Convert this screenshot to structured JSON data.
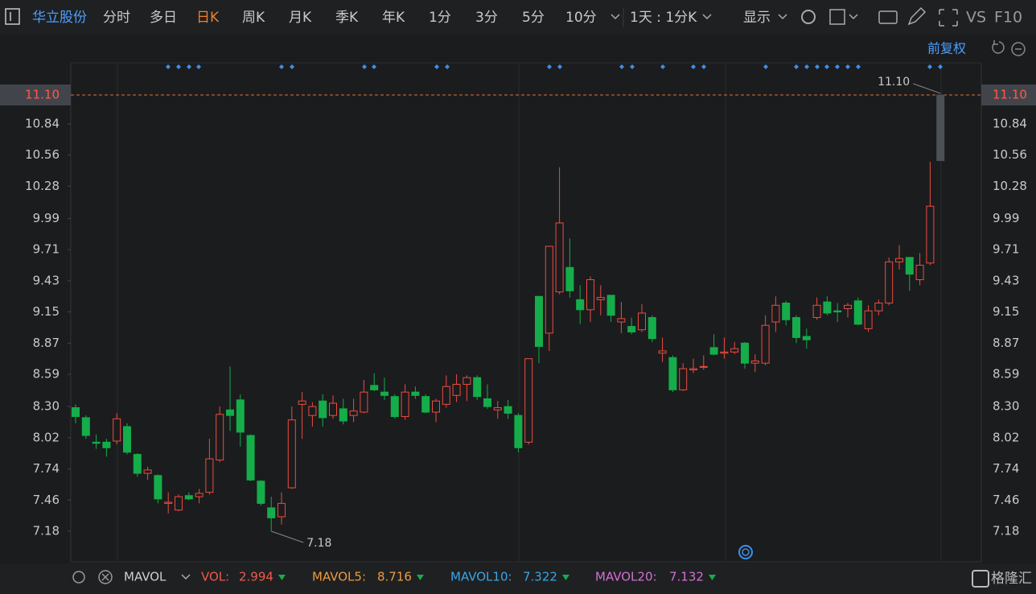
{
  "toolbar": {
    "stock": "华立股份",
    "tabs": [
      "分时",
      "多日",
      "日K",
      "周K",
      "月K",
      "季K",
      "年K",
      "1分",
      "3分",
      "5分",
      "10分"
    ],
    "active_tab": 2,
    "period": "1天 : 1分K",
    "display": "显示",
    "vs": "VS",
    "f10": "F10"
  },
  "adjust": "前复权",
  "chart_data": {
    "type": "candlestick",
    "ylim": [
      6.905,
      11.389
    ],
    "yticks": [
      10.84,
      10.56,
      10.28,
      9.99,
      9.71,
      9.43,
      9.15,
      8.87,
      8.59,
      {
        "value": 8.3,
        "label": "8.30"
      },
      8.02,
      7.74,
      7.46,
      7.18
    ],
    "last_price": {
      "value": 11.1,
      "label": "11.10"
    },
    "high_label": {
      "value": 11.1,
      "label": "11.10"
    },
    "low_label": 7.18,
    "up_color": "#ee4b3e",
    "down_color": "#14ad4a",
    "current_color": "#4b5057",
    "candles": [
      [
        8.29,
        8.32,
        8.15,
        8.21
      ],
      [
        8.2,
        8.22,
        8.01,
        8.04
      ],
      [
        7.98,
        8.05,
        7.92,
        7.97
      ],
      [
        7.98,
        8.01,
        7.85,
        7.93
      ],
      [
        7.99,
        8.24,
        7.96,
        8.19
      ],
      [
        8.12,
        8.15,
        7.87,
        7.89
      ],
      [
        7.87,
        7.88,
        7.67,
        7.7
      ],
      [
        7.7,
        7.76,
        7.64,
        7.73
      ],
      [
        7.68,
        7.69,
        7.43,
        7.47
      ],
      [
        7.43,
        7.53,
        7.34,
        7.44
      ],
      [
        7.37,
        7.51,
        7.36,
        7.49
      ],
      [
        7.5,
        7.53,
        7.46,
        7.47
      ],
      [
        7.49,
        7.56,
        7.43,
        7.52
      ],
      [
        7.53,
        8.01,
        7.51,
        7.83
      ],
      [
        7.82,
        8.3,
        7.8,
        8.23
      ],
      [
        8.27,
        8.66,
        8.08,
        8.22
      ],
      [
        8.36,
        8.41,
        7.94,
        8.07
      ],
      [
        8.04,
        8.05,
        7.63,
        7.64
      ],
      [
        7.63,
        7.64,
        7.41,
        7.43
      ],
      [
        7.39,
        7.49,
        7.18,
        7.3
      ],
      [
        7.31,
        7.53,
        7.24,
        7.43
      ],
      [
        7.57,
        8.3,
        7.56,
        8.18
      ],
      [
        8.32,
        8.43,
        8.01,
        8.35
      ],
      [
        8.22,
        8.34,
        8.12,
        8.3
      ],
      [
        8.35,
        8.41,
        8.12,
        8.2
      ],
      [
        8.22,
        8.4,
        8.19,
        8.33
      ],
      [
        8.28,
        8.37,
        8.14,
        8.17
      ],
      [
        8.22,
        8.37,
        8.16,
        8.26
      ],
      [
        8.25,
        8.54,
        8.24,
        8.43
      ],
      [
        8.49,
        8.6,
        8.44,
        8.45
      ],
      [
        8.43,
        8.56,
        8.36,
        8.4
      ],
      [
        8.39,
        8.41,
        8.19,
        8.21
      ],
      [
        8.21,
        8.5,
        8.18,
        8.43
      ],
      [
        8.43,
        8.48,
        8.37,
        8.4
      ],
      [
        8.39,
        8.41,
        8.24,
        8.25
      ],
      [
        8.25,
        8.37,
        8.16,
        8.35
      ],
      [
        8.32,
        8.58,
        8.29,
        8.48
      ],
      [
        8.4,
        8.59,
        8.34,
        8.5
      ],
      [
        8.5,
        8.58,
        8.35,
        8.56
      ],
      [
        8.56,
        8.58,
        8.36,
        8.39
      ],
      [
        8.37,
        8.5,
        8.28,
        8.3
      ],
      [
        8.27,
        8.35,
        8.19,
        8.29
      ],
      [
        8.3,
        8.36,
        8.19,
        8.24
      ],
      [
        8.22,
        8.24,
        7.89,
        7.93
      ],
      [
        7.98,
        8.73,
        7.96,
        8.73
      ],
      [
        9.29,
        9.29,
        8.69,
        8.84
      ],
      [
        8.96,
        9.74,
        8.8,
        9.74
      ],
      [
        9.33,
        10.45,
        9.31,
        9.95
      ],
      [
        9.55,
        9.81,
        9.28,
        9.34
      ],
      [
        9.26,
        9.39,
        9.04,
        9.17
      ],
      [
        9.17,
        9.47,
        9.06,
        9.44
      ],
      [
        9.26,
        9.39,
        9.12,
        9.28
      ],
      [
        9.3,
        9.3,
        9.06,
        9.12
      ],
      [
        9.06,
        9.24,
        8.96,
        9.09
      ],
      [
        9.02,
        9.1,
        8.95,
        8.97
      ],
      [
        8.99,
        9.22,
        8.97,
        9.14
      ],
      [
        9.1,
        9.12,
        8.88,
        8.91
      ],
      [
        8.78,
        8.92,
        8.7,
        8.8
      ],
      [
        8.74,
        8.76,
        8.43,
        8.45
      ],
      [
        8.45,
        8.69,
        8.44,
        8.64
      ],
      [
        8.63,
        8.73,
        8.6,
        8.64
      ],
      [
        8.66,
        8.76,
        8.63,
        8.66
      ],
      [
        8.83,
        8.95,
        8.76,
        8.77
      ],
      [
        8.78,
        8.92,
        8.73,
        8.79
      ],
      [
        8.79,
        8.88,
        8.77,
        8.82
      ],
      [
        8.87,
        8.88,
        8.64,
        8.69
      ],
      [
        8.69,
        8.77,
        8.61,
        8.71
      ],
      [
        8.69,
        9.12,
        8.67,
        9.03
      ],
      [
        9.06,
        9.29,
        8.97,
        9.21
      ],
      [
        9.23,
        9.25,
        9.03,
        9.08
      ],
      [
        9.1,
        9.12,
        8.87,
        8.92
      ],
      [
        8.93,
        9.0,
        8.82,
        8.9
      ],
      [
        9.1,
        9.28,
        9.08,
        9.21
      ],
      [
        9.24,
        9.29,
        9.12,
        9.14
      ],
      [
        9.16,
        9.23,
        9.06,
        9.15
      ],
      [
        9.18,
        9.23,
        9.1,
        9.21
      ],
      [
        9.25,
        9.28,
        9.03,
        9.04
      ],
      [
        9.0,
        9.21,
        8.97,
        9.16
      ],
      [
        9.16,
        9.26,
        9.12,
        9.23
      ],
      [
        9.23,
        9.64,
        9.21,
        9.6
      ],
      [
        9.6,
        9.75,
        9.53,
        9.63
      ],
      [
        9.64,
        9.64,
        9.34,
        9.49
      ],
      [
        9.44,
        9.68,
        9.39,
        9.57
      ],
      [
        9.59,
        10.5,
        9.57,
        10.1
      ],
      [
        10.51,
        11.1,
        10.51,
        11.1
      ]
    ]
  },
  "indicators": {
    "name": "MAVOL",
    "items": [
      {
        "label": "VOL:",
        "value": 2.994,
        "color": "#ee5a4a"
      },
      {
        "label": "MAVOL5:",
        "value": 8.716,
        "color": "#f09a3e"
      },
      {
        "label": "MAVOL10:",
        "value": 7.322,
        "color": "#3aa6e6"
      },
      {
        "label": "MAVOL20:",
        "value": 7.132,
        "color": "#d46fd4"
      }
    ]
  },
  "watermark": "格隆汇"
}
